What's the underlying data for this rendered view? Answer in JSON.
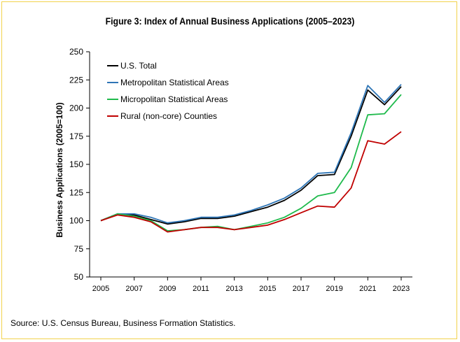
{
  "title": "Figure 3: Index of Annual Business Applications (2005–2023)",
  "source": "Source: U.S. Census Bureau, Business Formation Statistics.",
  "chart_data": {
    "type": "line",
    "title": "Figure 3: Index of Annual Business Applications (2005–2023)",
    "xlabel": "",
    "ylabel": "Business Applications (2005=100)",
    "xlim": [
      2005,
      2023
    ],
    "ylim": [
      50,
      250
    ],
    "x_ticks": [
      2005,
      2007,
      2009,
      2011,
      2013,
      2015,
      2017,
      2019,
      2021,
      2023
    ],
    "y_ticks": [
      50,
      75,
      100,
      125,
      150,
      175,
      200,
      225,
      250
    ],
    "grid": false,
    "legend_position": "top-left",
    "x": [
      2005,
      2006,
      2007,
      2008,
      2009,
      2010,
      2011,
      2012,
      2013,
      2014,
      2015,
      2016,
      2017,
      2018,
      2019,
      2020,
      2021,
      2022,
      2023
    ],
    "series": [
      {
        "name": "U.S. Total",
        "color": "#000000",
        "values": [
          100,
          106,
          105,
          101,
          97,
          99,
          102,
          102,
          104,
          108,
          112,
          118,
          127,
          140,
          141,
          175,
          216,
          203,
          219
        ]
      },
      {
        "name": "Metropolitan Statistical Areas",
        "color": "#2e75b6",
        "values": [
          100,
          106,
          106,
          103,
          98,
          100,
          103,
          103,
          105,
          109,
          114,
          120,
          129,
          142,
          143,
          178,
          220,
          205,
          221
        ]
      },
      {
        "name": "Micropolitan Statistical Areas",
        "color": "#1fba4c",
        "values": [
          100,
          106,
          104,
          100,
          91,
          92,
          94,
          95,
          92,
          95,
          98,
          103,
          111,
          122,
          125,
          147,
          194,
          195,
          212
        ]
      },
      {
        "name": "Rural (non-core) Counties",
        "color": "#c00000",
        "values": [
          100,
          105,
          103,
          99,
          90,
          92,
          94,
          94,
          92,
          94,
          96,
          101,
          107,
          113,
          112,
          129,
          171,
          168,
          179
        ]
      }
    ]
  }
}
